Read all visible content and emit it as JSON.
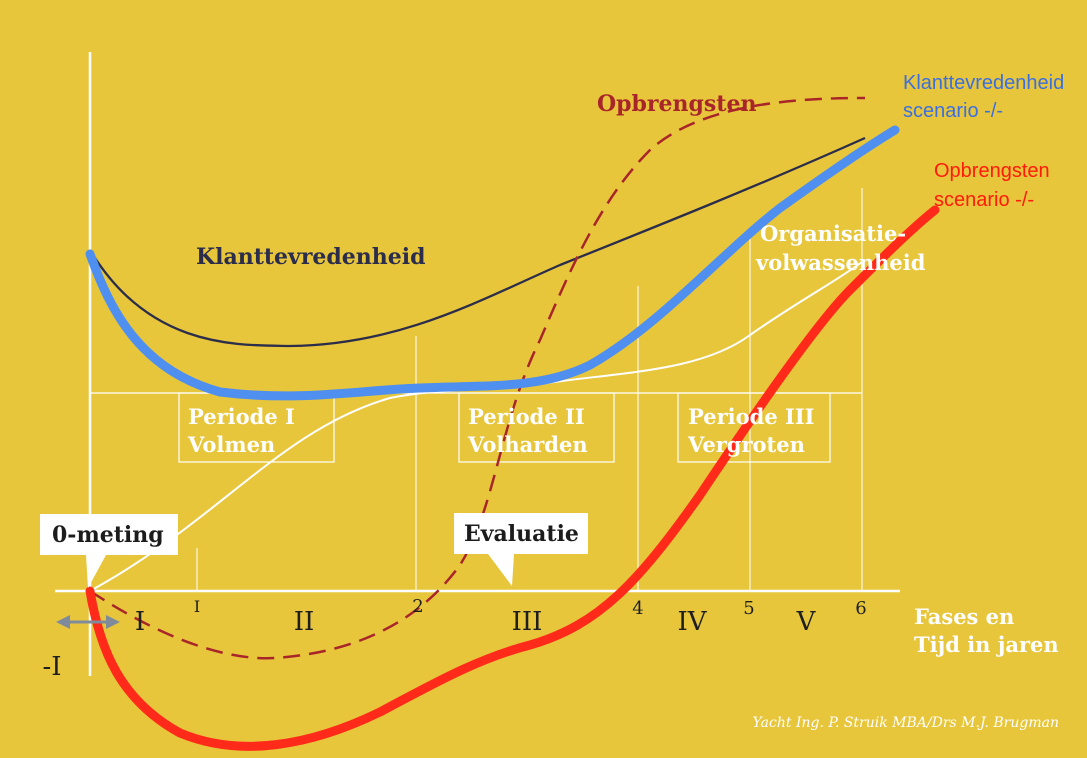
{
  "diagram": {
    "curve_labels": {
      "opbrengsten": "Opbrengsten",
      "klanttevredenheid": "Klanttevredenheid",
      "organisatie_line1": "Organisatie-",
      "organisatie_line2": "volwassenheid"
    },
    "scenario_labels": {
      "klant_line1": "Klanttevredenheid",
      "klant_line2": "scenario -/-",
      "opbr_line1": "Opbrengsten",
      "opbr_line2": "scenario -/-"
    },
    "periods": [
      {
        "line1": "Periode I",
        "line2": "Volmen"
      },
      {
        "line1": "Periode II",
        "line2": "Volharden"
      },
      {
        "line1": "Periode III",
        "line2": "Vergroten"
      }
    ],
    "callouts": {
      "nulmeting": "0-meting",
      "evaluatie": "Evaluatie"
    },
    "phases": [
      "I",
      "II",
      "III",
      "IV",
      "V"
    ],
    "phase_negative": "-I",
    "year_ticks": [
      "I",
      "2",
      "4",
      "5",
      "6"
    ],
    "axis_label_line1": "Fases en",
    "axis_label_line2": "Tijd in jaren",
    "credit": "Yacht Ing. P. Struik MBA/Drs M.J. Brugman",
    "colors": {
      "background": "#e8c63c",
      "klanttevredenheid": "#2b2d4a",
      "opbrengsten": "#a8262a",
      "organisatie": "#ffffff",
      "scenario_klant": "#4f8ff0",
      "scenario_opbr": "#ff2a1a"
    }
  }
}
